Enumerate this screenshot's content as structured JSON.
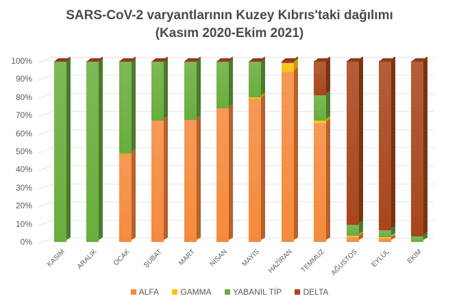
{
  "chart_data": {
    "type": "bar",
    "stacked": true,
    "percent_stacked": true,
    "style": "3d-column",
    "title": "SARS-CoV-2 varyantlarının Kuzey Kıbrıs'taki dağılımı",
    "subtitle": "(Kasım 2020-Ekim 2021)",
    "xlabel": "",
    "ylabel": "",
    "ylim": [
      0,
      100
    ],
    "yticks": [
      "0%",
      "10%",
      "20%",
      "30%",
      "40%",
      "50%",
      "60%",
      "70%",
      "80%",
      "90%",
      "100%"
    ],
    "grid": true,
    "legend_position": "bottom",
    "categories": [
      "KASIM",
      "ARALIK",
      "OCAK",
      "ŞUBAT",
      "MART",
      "NİSAN",
      "MAYIS",
      "HAZİRAN",
      "TEMMUZ",
      "AĞUSTOS",
      "EYLÜL",
      "EKİM"
    ],
    "series": [
      {
        "name": "ALFA",
        "color": "#f58a3c",
        "values": [
          0,
          0,
          49,
          67,
          67.5,
          74,
          79,
          94,
          65.5,
          2.5,
          2,
          0
        ]
      },
      {
        "name": "GAMMA",
        "color": "#fcc10f",
        "values": [
          0,
          0,
          0,
          0,
          0,
          0,
          1,
          5,
          1.5,
          1,
          0.5,
          0
        ]
      },
      {
        "name": "YABANIL TİP",
        "color": "#6aad3d",
        "values": [
          100,
          100,
          51,
          33,
          32.5,
          26,
          20,
          0,
          14,
          6,
          4,
          3
        ]
      },
      {
        "name": "DELTA",
        "color": "#a8461b",
        "values": [
          0,
          0,
          0,
          0,
          0,
          0,
          0,
          1,
          19,
          90.5,
          93.5,
          97
        ]
      }
    ]
  },
  "title": {
    "line1": "SARS-CoV-2 varyantlarının Kuzey Kıbrıs'taki dağılımı",
    "line2": "(Kasım 2020-Ekim 2021)"
  },
  "legend": {
    "items": [
      {
        "label": "ALFA",
        "color": "#f58a3c"
      },
      {
        "label": "GAMMA",
        "color": "#fcc10f"
      },
      {
        "label": "YABANIL TİP",
        "color": "#6aad3d"
      },
      {
        "label": "DELTA",
        "color": "#a8461b"
      }
    ]
  }
}
